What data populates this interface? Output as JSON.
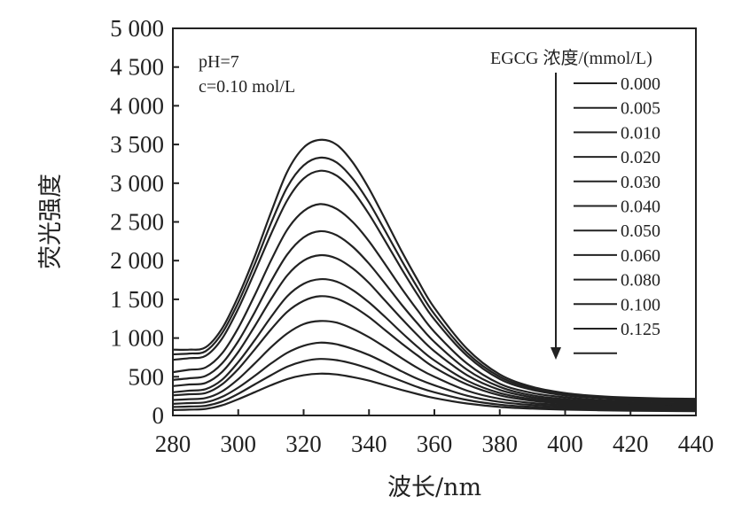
{
  "chart_data": {
    "type": "line",
    "title": "",
    "xlabel": "波长/nm",
    "ylabel": "荧光强度",
    "xlim": [
      280,
      440
    ],
    "ylim": [
      0,
      5000
    ],
    "x_ticks": [
      "280",
      "300",
      "320",
      "340",
      "360",
      "380",
      "400",
      "420",
      "440"
    ],
    "y_ticks": [
      "0",
      "500",
      "1 000",
      "1 500",
      "2 000",
      "2 500",
      "3 000",
      "3 500",
      "4 000",
      "4 500",
      "5 000"
    ],
    "annotations": [
      "pH=7",
      "c=0.10 mol/L"
    ],
    "legend_title": "EGCG 浓度/(mmol/L)",
    "legend_position": "top-right",
    "legend_arrow": "down",
    "x": [
      280,
      285,
      290,
      295,
      300,
      305,
      310,
      315,
      320,
      325,
      330,
      335,
      340,
      345,
      350,
      355,
      360,
      370,
      380,
      390,
      400,
      410,
      420,
      430,
      440
    ],
    "series": [
      {
        "name": "0.000",
        "values": [
          850,
          850,
          880,
          1120,
          1540,
          2050,
          2620,
          3150,
          3460,
          3560,
          3500,
          3270,
          2930,
          2530,
          2120,
          1740,
          1390,
          860,
          530,
          370,
          290,
          250,
          230,
          220,
          215
        ]
      },
      {
        "name": "0.005",
        "values": [
          790,
          800,
          830,
          1060,
          1460,
          1950,
          2480,
          2950,
          3230,
          3330,
          3270,
          3060,
          2750,
          2380,
          2000,
          1640,
          1310,
          810,
          500,
          350,
          275,
          235,
          215,
          205,
          200
        ]
      },
      {
        "name": "0.010",
        "values": [
          720,
          740,
          770,
          990,
          1380,
          1850,
          2340,
          2780,
          3060,
          3160,
          3100,
          2900,
          2600,
          2250,
          1890,
          1550,
          1240,
          770,
          470,
          330,
          260,
          225,
          205,
          195,
          190
        ]
      },
      {
        "name": "0.020",
        "values": [
          560,
          590,
          620,
          800,
          1130,
          1550,
          2000,
          2400,
          2640,
          2730,
          2670,
          2500,
          2250,
          1950,
          1640,
          1350,
          1080,
          670,
          410,
          290,
          235,
          200,
          185,
          175,
          170
        ]
      },
      {
        "name": "0.030",
        "values": [
          460,
          480,
          510,
          670,
          960,
          1330,
          1730,
          2080,
          2300,
          2380,
          2330,
          2180,
          1960,
          1700,
          1430,
          1180,
          950,
          590,
          370,
          260,
          210,
          180,
          165,
          155,
          150
        ]
      },
      {
        "name": "0.040",
        "values": [
          380,
          400,
          420,
          560,
          820,
          1150,
          1500,
          1810,
          2000,
          2070,
          2030,
          1900,
          1710,
          1480,
          1250,
          1030,
          830,
          520,
          330,
          235,
          190,
          165,
          150,
          140,
          135
        ]
      },
      {
        "name": "0.050",
        "values": [
          300,
          320,
          340,
          460,
          690,
          970,
          1270,
          1540,
          1700,
          1760,
          1730,
          1620,
          1460,
          1270,
          1070,
          880,
          710,
          450,
          290,
          210,
          170,
          150,
          135,
          125,
          120
        ]
      },
      {
        "name": "0.060",
        "values": [
          260,
          275,
          290,
          400,
          600,
          850,
          1110,
          1340,
          1480,
          1540,
          1510,
          1410,
          1270,
          1100,
          930,
          770,
          620,
          400,
          260,
          190,
          155,
          135,
          125,
          115,
          110
        ]
      },
      {
        "name": "0.080",
        "values": [
          200,
          210,
          225,
          310,
          470,
          670,
          880,
          1060,
          1180,
          1220,
          1200,
          1120,
          1010,
          880,
          740,
          610,
          500,
          320,
          215,
          160,
          135,
          120,
          110,
          102,
          98
        ]
      },
      {
        "name": "0.100",
        "values": [
          150,
          160,
          170,
          240,
          360,
          510,
          670,
          810,
          900,
          940,
          920,
          860,
          780,
          680,
          570,
          470,
          390,
          255,
          175,
          135,
          115,
          102,
          95,
          88,
          85
        ]
      },
      {
        "name": "0.125",
        "values": [
          110,
          115,
          125,
          180,
          280,
          400,
          520,
          630,
          700,
          730,
          715,
          670,
          605,
          525,
          445,
          365,
          300,
          200,
          140,
          110,
          95,
          85,
          78,
          72,
          70
        ]
      },
      {
        "name": "",
        "values": [
          70,
          75,
          85,
          130,
          210,
          300,
          390,
          470,
          520,
          540,
          530,
          495,
          450,
          390,
          330,
          275,
          225,
          155,
          110,
          88,
          75,
          68,
          62,
          58,
          55
        ]
      }
    ]
  }
}
